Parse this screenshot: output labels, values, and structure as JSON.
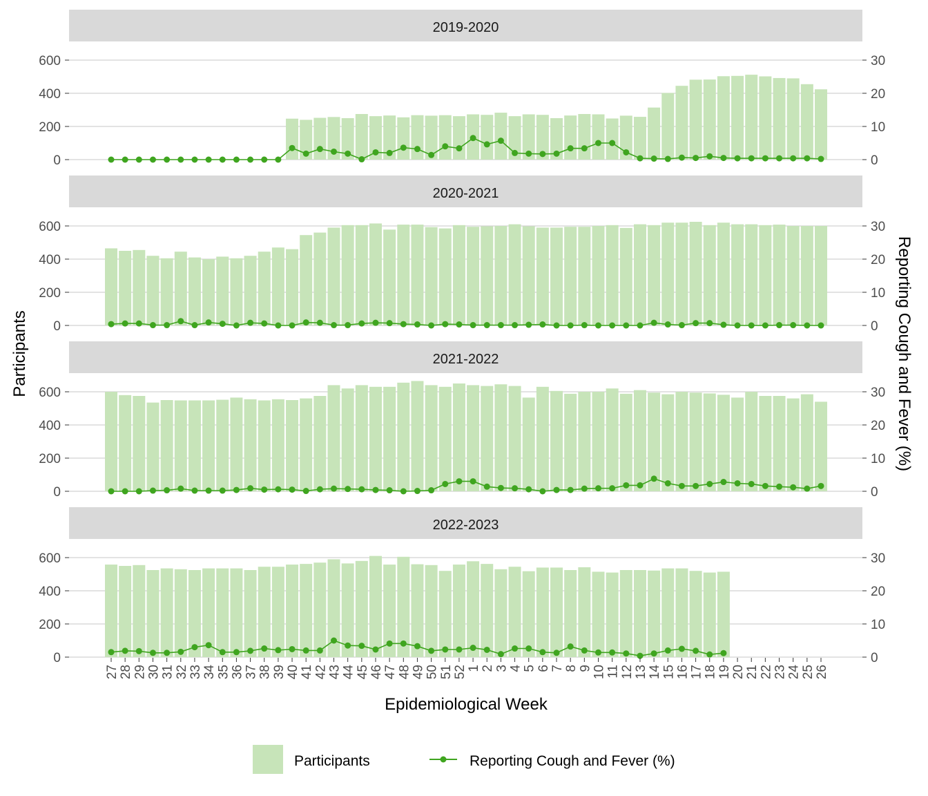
{
  "chart_data": {
    "type": "bar",
    "xlabel": "Epidemiological Week",
    "ylabel": "Participants",
    "y2label": "Reporting Cough and Fever (%)",
    "ylim": [
      0,
      600
    ],
    "y2lim": [
      0,
      30
    ],
    "yticks": [
      "0",
      "200",
      "400",
      "600"
    ],
    "y2ticks": [
      "0",
      "10",
      "20",
      "30"
    ],
    "grid": true,
    "legend_position": "bottom",
    "weeks": [
      "27",
      "28",
      "29",
      "30",
      "31",
      "32",
      "33",
      "34",
      "35",
      "36",
      "37",
      "38",
      "39",
      "40",
      "41",
      "42",
      "43",
      "44",
      "45",
      "46",
      "47",
      "48",
      "49",
      "50",
      "51",
      "52",
      "1",
      "2",
      "3",
      "4",
      "5",
      "6",
      "7",
      "8",
      "9",
      "10",
      "11",
      "12",
      "13",
      "14",
      "15",
      "16",
      "17",
      "18",
      "19",
      "20",
      "21",
      "22",
      "23",
      "24",
      "25",
      "26"
    ],
    "legend": {
      "bars": "Participants",
      "line": "Reporting Cough and Fever (%)"
    },
    "colors": {
      "bars": "#c7e4b9",
      "line": "#3fa51f",
      "strip": "#d9d9d9",
      "grid": "#d2d2d2"
    },
    "panels": [
      {
        "title": "2019-2020",
        "participants": [
          null,
          null,
          null,
          null,
          null,
          null,
          null,
          null,
          null,
          null,
          null,
          null,
          null,
          247,
          240,
          252,
          257,
          250,
          275,
          262,
          266,
          255,
          268,
          265,
          268,
          262,
          273,
          270,
          283,
          262,
          273,
          270,
          250,
          266,
          275,
          273,
          248,
          265,
          258,
          314,
          402,
          445,
          482,
          483,
          503,
          505,
          512,
          502,
          492,
          490,
          455,
          424
        ],
        "cough_fever_pct": [
          0,
          0,
          0,
          0,
          0,
          0,
          0,
          0,
          0,
          0,
          0,
          0,
          0,
          3.5,
          1.8,
          3.2,
          2.4,
          1.8,
          0.1,
          2.2,
          2.0,
          3.6,
          3.2,
          1.4,
          4.0,
          3.4,
          6.5,
          4.6,
          5.7,
          2.0,
          1.8,
          1.7,
          1.8,
          3.4,
          3.4,
          5.0,
          5.0,
          2.2,
          0.4,
          0.3,
          0.2,
          0.6,
          0.5,
          1.0,
          0.5,
          0.4,
          0.4,
          0.4,
          0.4,
          0.4,
          0.4,
          0.2
        ]
      },
      {
        "title": "2020-2021",
        "participants": [
          465,
          450,
          455,
          420,
          405,
          445,
          410,
          400,
          415,
          405,
          420,
          445,
          470,
          460,
          545,
          560,
          590,
          605,
          605,
          615,
          578,
          608,
          608,
          593,
          585,
          605,
          595,
          598,
          600,
          610,
          598,
          590,
          590,
          595,
          595,
          600,
          605,
          588,
          610,
          605,
          620,
          620,
          625,
          605,
          620,
          610,
          610,
          605,
          608,
          600,
          600,
          600
        ],
        "cough_fever_pct": [
          0.4,
          0.6,
          0.6,
          0.1,
          0.1,
          1.3,
          0.1,
          0.9,
          0.5,
          0,
          0.8,
          0.6,
          0,
          0,
          0.9,
          0.8,
          0.1,
          0.1,
          0.6,
          0.8,
          0.7,
          0.4,
          0.3,
          0,
          0.4,
          0.3,
          0.1,
          0.1,
          0.1,
          0.1,
          0.2,
          0.3,
          0,
          0,
          0.1,
          0,
          0,
          0,
          0,
          0.8,
          0.3,
          0.1,
          0.7,
          0.7,
          0.2,
          0,
          0,
          0,
          0.1,
          0.1,
          0,
          0
        ]
      },
      {
        "title": "2021-2022",
        "participants": [
          600,
          580,
          575,
          535,
          550,
          548,
          548,
          548,
          552,
          565,
          555,
          548,
          555,
          550,
          560,
          575,
          640,
          620,
          640,
          630,
          630,
          655,
          665,
          640,
          630,
          650,
          640,
          635,
          645,
          635,
          565,
          630,
          605,
          588,
          600,
          600,
          620,
          588,
          610,
          595,
          585,
          600,
          595,
          590,
          582,
          565,
          600,
          575,
          575,
          560,
          585,
          540
        ],
        "cough_fever_pct": [
          0,
          0,
          0,
          0.2,
          0.3,
          0.8,
          0.2,
          0.2,
          0.2,
          0.4,
          0.9,
          0.5,
          0.6,
          0.5,
          0.1,
          0.6,
          0.8,
          0.7,
          0.6,
          0.4,
          0.3,
          0,
          0.1,
          0.3,
          2.2,
          3.0,
          3.0,
          1.4,
          1.0,
          0.9,
          0.6,
          0,
          0.4,
          0.4,
          0.8,
          0.9,
          0.9,
          1.8,
          1.8,
          3.8,
          2.4,
          1.6,
          1.6,
          2.2,
          2.8,
          2.4,
          2.2,
          1.6,
          1.4,
          1.2,
          0.8,
          1.6
        ]
      },
      {
        "title": "2022-2023",
        "participants": [
          558,
          550,
          555,
          525,
          535,
          530,
          525,
          535,
          535,
          535,
          525,
          545,
          545,
          558,
          562,
          570,
          590,
          565,
          580,
          610,
          558,
          605,
          560,
          555,
          520,
          558,
          578,
          562,
          530,
          545,
          518,
          540,
          540,
          525,
          542,
          515,
          510,
          525,
          525,
          522,
          535,
          535,
          520,
          510,
          515,
          null,
          null,
          null,
          null,
          null,
          null,
          null
        ],
        "cough_fever_pct": [
          1.5,
          1.9,
          1.8,
          1.3,
          1.3,
          1.6,
          3.0,
          3.6,
          1.5,
          1.5,
          1.9,
          2.6,
          2.1,
          2.4,
          2.0,
          2.0,
          5.0,
          3.5,
          3.4,
          2.3,
          4.1,
          4.1,
          3.3,
          1.9,
          2.3,
          2.3,
          2.8,
          2.2,
          0.9,
          2.6,
          2.6,
          1.5,
          1.3,
          3.2,
          2.0,
          1.4,
          1.4,
          1.1,
          0.4,
          1.1,
          2.0,
          2.5,
          1.9,
          0.8,
          1.2,
          null,
          null,
          null,
          null,
          null,
          null,
          null
        ]
      }
    ]
  }
}
